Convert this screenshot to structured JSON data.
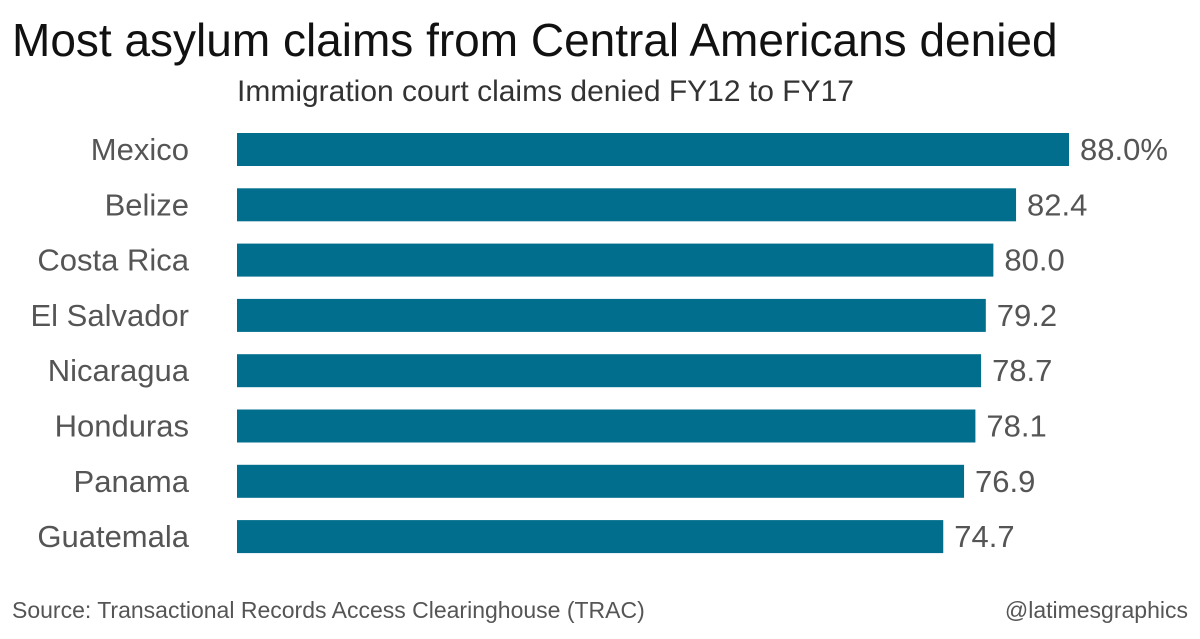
{
  "header": {
    "title": "Most asylum claims from Central Americans denied",
    "subtitle": "Immigration court claims denied FY12 to FY17"
  },
  "footer": {
    "source": "Source: Transactional Records Access Clearinghouse (TRAC)",
    "credit": "@latimesgraphics"
  },
  "colors": {
    "bar": "#006e8c",
    "category_label": "#555555",
    "value_label": "#555555"
  },
  "chart_data": {
    "type": "bar",
    "orientation": "horizontal",
    "title": "Most asylum claims from Central Americans denied",
    "subtitle": "Immigration court claims denied FY12 to FY17",
    "categories": [
      "Mexico",
      "Belize",
      "Costa Rica",
      "El Salvador",
      "Nicaragua",
      "Honduras",
      "Panama",
      "Guatemala"
    ],
    "values": [
      88.0,
      82.4,
      80.0,
      79.2,
      78.7,
      78.1,
      76.9,
      74.7
    ],
    "value_labels": [
      "88.0%",
      "82.4",
      "80.0",
      "79.2",
      "78.7",
      "78.1",
      "76.9",
      "74.7"
    ],
    "xlim": [
      0,
      88
    ],
    "grid": false,
    "legend": "none"
  }
}
